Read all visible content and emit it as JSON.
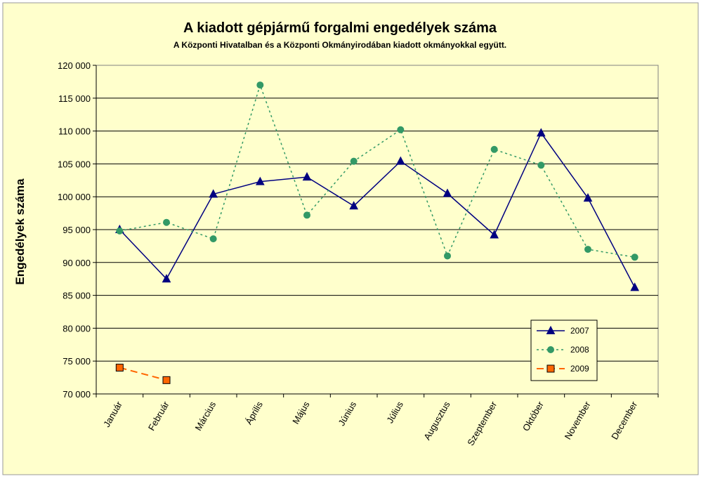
{
  "chart_data": {
    "type": "line",
    "title": "A  kiadott gépjármű forgalmi engedélyek száma",
    "subtitle": "A  Központi Hivatalban és a Központi Okmányirodában kiadott okmányokkal együtt.",
    "ylabel": "Engedélyek száma",
    "xlabel": "",
    "categories": [
      "Január",
      "Február",
      "Március",
      "Április",
      "Május",
      "Június",
      "Július",
      "Augusztus",
      "Szeptember",
      "Október",
      "November",
      "December"
    ],
    "ylim": [
      70000,
      120000
    ],
    "yticks": [
      70000,
      75000,
      80000,
      85000,
      90000,
      95000,
      100000,
      105000,
      110000,
      115000,
      120000
    ],
    "ytick_labels": [
      "70 000",
      "75 000",
      "80 000",
      "85 000",
      "90 000",
      "95 000",
      "100 000",
      "105 000",
      "110 000",
      "115 000",
      "120 000"
    ],
    "grid": true,
    "legend_position": "bottom-right",
    "series": [
      {
        "name": "2007",
        "color": "#000080",
        "marker": "triangle",
        "dash": "solid",
        "values": [
          95000,
          87500,
          100400,
          102300,
          103000,
          98600,
          105400,
          100500,
          94200,
          109700,
          99800,
          86200
        ]
      },
      {
        "name": "2008",
        "color": "#339966",
        "marker": "circle",
        "dash": "dotted",
        "values": [
          94800,
          96100,
          93600,
          117000,
          97200,
          105400,
          110200,
          91000,
          107200,
          104800,
          92000,
          90800
        ]
      },
      {
        "name": "2009",
        "color": "#FF6600",
        "marker": "square",
        "dash": "dashed",
        "values": [
          74000,
          72100,
          null,
          null,
          null,
          null,
          null,
          null,
          null,
          null,
          null,
          null
        ]
      }
    ]
  },
  "colors": {
    "background": "#FFFFCC",
    "plot_area": "#FFFFCC",
    "gridline": "#000000"
  }
}
